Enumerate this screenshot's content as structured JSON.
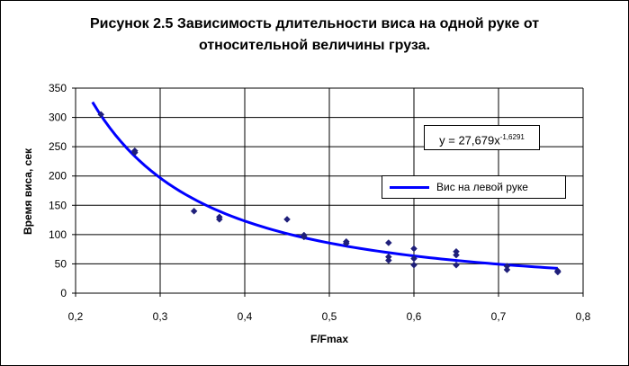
{
  "chart_data": {
    "type": "scatter",
    "title_line1": "Рисунок 2.5 Зависимость длительности виса на одной руке от",
    "title_line2": "относительной величины груза.",
    "xlabel": "F/Fmax",
    "ylabel": "Время виса, сек",
    "xlim": [
      0.2,
      0.8
    ],
    "ylim": [
      0,
      350
    ],
    "xticks": [
      "0,2",
      "0,3",
      "0,4",
      "0,5",
      "0,6",
      "0,7",
      "0,8"
    ],
    "yticks": [
      "0",
      "50",
      "100",
      "150",
      "200",
      "250",
      "300",
      "350"
    ],
    "grid": true,
    "legend_position": "right",
    "series": [
      {
        "name": "Вис на левой руке",
        "color": "#0000ff",
        "marker_color": "#1f1f7a",
        "points": [
          [
            0.23,
            305
          ],
          [
            0.27,
            243
          ],
          [
            0.27,
            240
          ],
          [
            0.34,
            140
          ],
          [
            0.37,
            130
          ],
          [
            0.37,
            126
          ],
          [
            0.45,
            126
          ],
          [
            0.47,
            99
          ],
          [
            0.47,
            96
          ],
          [
            0.52,
            88
          ],
          [
            0.52,
            85
          ],
          [
            0.57,
            86
          ],
          [
            0.57,
            62
          ],
          [
            0.57,
            56
          ],
          [
            0.6,
            76
          ],
          [
            0.6,
            59
          ],
          [
            0.6,
            48
          ],
          [
            0.65,
            71
          ],
          [
            0.65,
            65
          ],
          [
            0.65,
            48
          ],
          [
            0.71,
            46
          ],
          [
            0.71,
            40
          ],
          [
            0.77,
            38
          ],
          [
            0.77,
            36
          ]
        ]
      }
    ],
    "trendline": {
      "type": "power",
      "coefficient": 27.679,
      "exponent": -1.6291,
      "x_range": [
        0.22,
        0.77
      ],
      "label_prefix": "y = 27,679x",
      "label_exponent": "-1,6291"
    }
  }
}
